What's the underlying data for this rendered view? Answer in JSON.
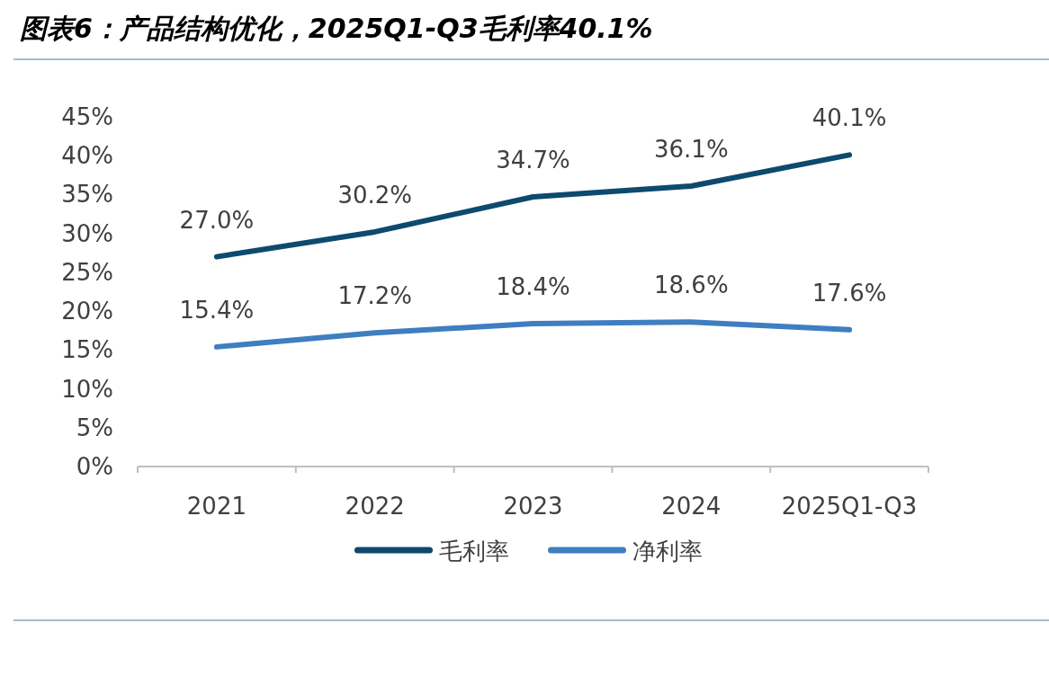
{
  "chart_data": {
    "type": "line",
    "title": "图表6：产品结构优化，2025Q1-Q3毛利率40.1%",
    "categories": [
      "2021",
      "2022",
      "2023",
      "2024",
      "2025Q1-Q3"
    ],
    "series": [
      {
        "name": "毛利率",
        "color": "#0d4a6e",
        "values": [
          27.0,
          30.2,
          34.7,
          36.1,
          40.1
        ],
        "value_labels": [
          "27.0%",
          "30.2%",
          "34.7%",
          "36.1%",
          "40.1%"
        ]
      },
      {
        "name": "净利率",
        "color": "#3f7ec0",
        "values": [
          15.4,
          17.2,
          18.4,
          18.6,
          17.6
        ],
        "value_labels": [
          "15.4%",
          "17.2%",
          "18.4%",
          "18.6%",
          "17.6%"
        ]
      }
    ],
    "ylim": [
      0,
      45
    ],
    "yticks": [
      {
        "value": 0,
        "label": "0%"
      },
      {
        "value": 5,
        "label": "5%"
      },
      {
        "value": 10,
        "label": "10%"
      },
      {
        "value": 15,
        "label": "15%"
      },
      {
        "value": 20,
        "label": "20%"
      },
      {
        "value": 25,
        "label": "25%"
      },
      {
        "value": 30,
        "label": "30%"
      },
      {
        "value": 35,
        "label": "35%"
      },
      {
        "value": 40,
        "label": "40%"
      },
      {
        "value": 45,
        "label": "45%"
      }
    ],
    "legend": "bottom",
    "grid": false,
    "marker": "none",
    "line_style": "solid"
  }
}
